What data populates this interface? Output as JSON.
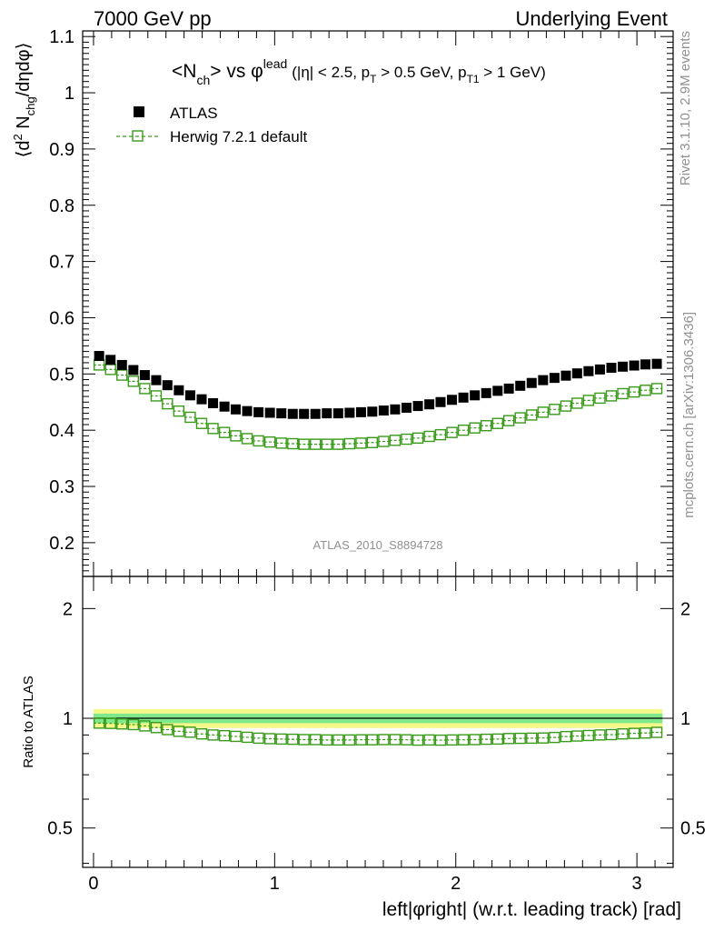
{
  "header": {
    "left": "7000 GeV pp",
    "right": "Underlying Event"
  },
  "side_text": {
    "rivet": "Rivet 3.1.10,  2.9M events",
    "mcplots": "mcplots.cern.ch [arXiv:1306.3436]"
  },
  "main_plot": {
    "title_parts": {
      "n_open": "<N",
      "n_sub": "ch",
      "n_close": "> vs ",
      "phi": "φ",
      "phi_sup": "lead",
      "cut1": "(|η| < 2.5, p",
      "cut1_sub": "T",
      "cut2": " > 0.5 GeV, p",
      "cut2_sub": "T1",
      "cut3": " > 1 GeV)"
    },
    "ylabel_parts": {
      "a": "⟨d",
      "sup": "2",
      "b": " N",
      "sub": "chg",
      "c": "/dηdφ⟩"
    },
    "watermark": "ATLAS_2010_S8894728",
    "legend": [
      {
        "label": "ATLAS",
        "color": "#000000",
        "marker": "filled-square"
      },
      {
        "label": "Herwig 7.2.1 default",
        "color": "#3a9a1a",
        "marker": "open-square-dashed"
      }
    ]
  },
  "ratio_plot": {
    "ylabel": "Ratio to ATLAS",
    "yticks": [
      "0.5",
      "1",
      "2"
    ],
    "yticks_right": [
      "0.5",
      "1",
      "2"
    ]
  },
  "xlabel": "left|φright| (w.r.t. leading track) [rad]",
  "chart_data": [
    {
      "type": "scatter",
      "title": "<Nch> vs φlead (|η| < 2.5, pT > 0.5 GeV, pT1 > 1 GeV)",
      "xlabel": "left|φright| (w.r.t. leading track) [rad]",
      "ylabel": "⟨d2 Nchg/dηdφ⟩",
      "xlim": [
        -0.06,
        3.2
      ],
      "ylim": [
        0.14,
        1.11
      ],
      "yticks": [
        0.2,
        0.3,
        0.4,
        0.5,
        0.6,
        0.7,
        0.8,
        0.9,
        1,
        1.1
      ],
      "xticks": [
        0,
        1,
        2,
        3
      ],
      "legend_position": "top-left",
      "x": [
        0.031,
        0.094,
        0.157,
        0.22,
        0.283,
        0.346,
        0.408,
        0.471,
        0.534,
        0.597,
        0.66,
        0.723,
        0.785,
        0.848,
        0.911,
        0.974,
        1.037,
        1.1,
        1.162,
        1.225,
        1.288,
        1.351,
        1.414,
        1.477,
        1.539,
        1.602,
        1.665,
        1.728,
        1.791,
        1.854,
        1.916,
        1.979,
        2.042,
        2.105,
        2.168,
        2.231,
        2.293,
        2.356,
        2.419,
        2.482,
        2.545,
        2.608,
        2.67,
        2.733,
        2.796,
        2.859,
        2.922,
        2.985,
        3.047,
        3.11
      ],
      "series": [
        {
          "name": "ATLAS",
          "color": "#000000",
          "values": [
            0.532,
            0.525,
            0.516,
            0.507,
            0.498,
            0.489,
            0.48,
            0.471,
            0.462,
            0.455,
            0.448,
            0.442,
            0.437,
            0.434,
            0.432,
            0.431,
            0.43,
            0.429,
            0.429,
            0.429,
            0.43,
            0.43,
            0.431,
            0.432,
            0.433,
            0.435,
            0.437,
            0.44,
            0.443,
            0.446,
            0.45,
            0.454,
            0.458,
            0.462,
            0.466,
            0.47,
            0.474,
            0.479,
            0.484,
            0.489,
            0.493,
            0.497,
            0.501,
            0.505,
            0.508,
            0.511,
            0.513,
            0.515,
            0.517,
            0.518
          ]
        },
        {
          "name": "Herwig 7.2.1 default",
          "color": "#3a9a1a",
          "values": [
            0.516,
            0.508,
            0.498,
            0.487,
            0.474,
            0.461,
            0.447,
            0.434,
            0.423,
            0.412,
            0.403,
            0.396,
            0.39,
            0.385,
            0.381,
            0.379,
            0.377,
            0.376,
            0.375,
            0.375,
            0.375,
            0.375,
            0.376,
            0.377,
            0.378,
            0.38,
            0.382,
            0.384,
            0.386,
            0.389,
            0.392,
            0.396,
            0.4,
            0.404,
            0.408,
            0.412,
            0.417,
            0.422,
            0.427,
            0.432,
            0.437,
            0.443,
            0.448,
            0.453,
            0.457,
            0.461,
            0.465,
            0.468,
            0.471,
            0.474
          ]
        }
      ]
    },
    {
      "type": "scatter",
      "ylabel": "Ratio to ATLAS",
      "xlabel": "left|φright| (w.r.t. leading track) [rad]",
      "xlim": [
        -0.06,
        3.2
      ],
      "ylim": [
        0.39,
        2.45
      ],
      "y_scale": "log",
      "yticks": [
        0.5,
        1,
        2
      ],
      "reference_band": {
        "inner": [
          0.97,
          1.03
        ],
        "outer": [
          0.94,
          1.06
        ]
      },
      "x": [
        0.031,
        0.094,
        0.157,
        0.22,
        0.283,
        0.346,
        0.408,
        0.471,
        0.534,
        0.597,
        0.66,
        0.723,
        0.785,
        0.848,
        0.911,
        0.974,
        1.037,
        1.1,
        1.162,
        1.225,
        1.288,
        1.351,
        1.414,
        1.477,
        1.539,
        1.602,
        1.665,
        1.728,
        1.791,
        1.854,
        1.916,
        1.979,
        2.042,
        2.105,
        2.168,
        2.231,
        2.293,
        2.356,
        2.419,
        2.482,
        2.545,
        2.608,
        2.67,
        2.733,
        2.796,
        2.859,
        2.922,
        2.985,
        3.047,
        3.11
      ],
      "series": [
        {
          "name": "Herwig 7.2.1 default",
          "color": "#3a9a1a",
          "values": [
            0.97,
            0.968,
            0.965,
            0.961,
            0.953,
            0.943,
            0.931,
            0.921,
            0.916,
            0.906,
            0.9,
            0.896,
            0.892,
            0.887,
            0.882,
            0.879,
            0.877,
            0.876,
            0.874,
            0.874,
            0.872,
            0.872,
            0.872,
            0.873,
            0.873,
            0.874,
            0.874,
            0.873,
            0.871,
            0.872,
            0.871,
            0.872,
            0.873,
            0.874,
            0.876,
            0.877,
            0.88,
            0.881,
            0.882,
            0.883,
            0.886,
            0.891,
            0.894,
            0.897,
            0.9,
            0.902,
            0.906,
            0.909,
            0.911,
            0.915
          ]
        }
      ]
    }
  ]
}
